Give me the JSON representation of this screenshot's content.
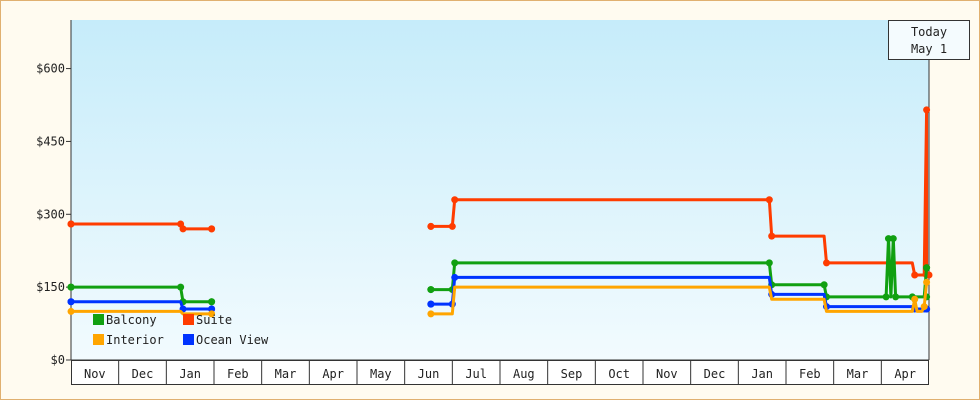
{
  "chart_data": {
    "type": "line",
    "y_axis": {
      "ticks": [
        "$0",
        "$150",
        "$300",
        "$450",
        "$600"
      ],
      "tick_values": [
        0,
        150,
        300,
        450,
        600
      ],
      "ylim": [
        0,
        700
      ]
    },
    "x_axis": {
      "months": [
        "Nov",
        "Dec",
        "Jan",
        "Feb",
        "Mar",
        "Apr",
        "May",
        "Jun",
        "Jul",
        "Aug",
        "Sep",
        "Oct",
        "Nov",
        "Dec",
        "Jan",
        "Feb",
        "Mar",
        "Apr"
      ],
      "range": [
        0,
        18
      ]
    },
    "today": {
      "line1": "Today",
      "line2": "May 1",
      "x": 18.0
    },
    "legend": [
      {
        "name": "Balcony",
        "color": "#11a011"
      },
      {
        "name": "Suite",
        "color": "#ff3c00"
      },
      {
        "name": "Interior",
        "color": "#ffa500"
      },
      {
        "name": "Ocean View",
        "color": "#0033ff"
      }
    ],
    "series": [
      {
        "name": "Suite",
        "color": "#ff3c00",
        "points": [
          [
            [
              0.0,
              280
            ],
            [
              2.3,
              280
            ],
            [
              2.3,
              280
            ],
            [
              2.35,
              270
            ],
            [
              2.95,
              270
            ]
          ],
          [
            [
              7.55,
              275
            ],
            [
              8.0,
              275
            ],
            [
              8.0,
              275
            ],
            [
              8.05,
              330
            ],
            [
              14.65,
              330
            ],
            [
              14.65,
              330
            ],
            [
              14.7,
              255
            ],
            [
              15.8,
              255
            ],
            [
              15.8,
              255
            ],
            [
              15.85,
              200
            ],
            [
              17.65,
              200
            ],
            [
              17.65,
              200
            ],
            [
              17.7,
              175
            ],
            [
              17.85,
              175
            ],
            [
              17.85,
              175
            ],
            [
              17.9,
              175
            ],
            [
              17.95,
              515
            ],
            [
              17.95,
              175
            ],
            [
              18.0,
              175
            ]
          ]
        ]
      },
      {
        "name": "Balcony",
        "color": "#11a011",
        "points": [
          [
            [
              0.0,
              150
            ],
            [
              2.3,
              150
            ],
            [
              2.3,
              150
            ],
            [
              2.35,
              120
            ],
            [
              2.95,
              120
            ]
          ],
          [
            [
              7.55,
              145
            ],
            [
              8.0,
              145
            ],
            [
              8.0,
              145
            ],
            [
              8.05,
              200
            ],
            [
              14.65,
              200
            ],
            [
              14.65,
              200
            ],
            [
              14.7,
              155
            ],
            [
              15.8,
              155
            ],
            [
              15.8,
              155
            ],
            [
              15.85,
              130
            ],
            [
              17.1,
              130
            ],
            [
              17.15,
              250
            ],
            [
              17.2,
              130
            ],
            [
              17.25,
              250
            ],
            [
              17.3,
              130
            ],
            [
              17.65,
              130
            ],
            [
              17.7,
              130
            ],
            [
              17.9,
              130
            ],
            [
              17.95,
              190
            ]
          ]
        ]
      },
      {
        "name": "Ocean View",
        "color": "#0033ff",
        "points": [
          [
            [
              0.0,
              120
            ],
            [
              2.3,
              120
            ],
            [
              2.3,
              120
            ],
            [
              2.35,
              105
            ],
            [
              2.95,
              105
            ]
          ],
          [
            [
              7.55,
              115
            ],
            [
              8.0,
              115
            ],
            [
              8.0,
              115
            ],
            [
              8.05,
              170
            ],
            [
              14.65,
              170
            ],
            [
              14.65,
              170
            ],
            [
              14.7,
              135
            ],
            [
              15.8,
              135
            ],
            [
              15.8,
              135
            ],
            [
              15.85,
              110
            ],
            [
              17.65,
              110
            ],
            [
              17.65,
              110
            ],
            [
              17.7,
              105
            ],
            [
              17.9,
              105
            ],
            [
              17.95,
              105
            ]
          ]
        ]
      },
      {
        "name": "Interior",
        "color": "#ffa500",
        "points": [
          [
            [
              0.0,
              100
            ],
            [
              2.3,
              100
            ],
            [
              2.3,
              100
            ],
            [
              2.35,
              95
            ],
            [
              2.95,
              95
            ]
          ],
          [
            [
              7.55,
              95
            ],
            [
              8.0,
              95
            ],
            [
              8.0,
              95
            ],
            [
              8.05,
              150
            ],
            [
              14.65,
              150
            ],
            [
              14.65,
              150
            ],
            [
              14.7,
              125
            ],
            [
              15.8,
              125
            ],
            [
              15.8,
              125
            ],
            [
              15.85,
              100
            ],
            [
              17.65,
              100
            ],
            [
              17.7,
              125
            ],
            [
              17.75,
              100
            ],
            [
              17.85,
              100
            ],
            [
              17.9,
              110
            ],
            [
              17.95,
              160
            ]
          ]
        ]
      }
    ],
    "markers": {
      "Suite": [
        [
          0.0,
          280
        ],
        [
          2.3,
          280
        ],
        [
          2.35,
          270
        ],
        [
          2.95,
          270
        ],
        [
          7.55,
          275
        ],
        [
          8.0,
          275
        ],
        [
          8.05,
          330
        ],
        [
          14.65,
          330
        ],
        [
          14.7,
          255
        ],
        [
          15.85,
          200
        ],
        [
          17.7,
          175
        ],
        [
          17.95,
          515
        ],
        [
          17.95,
          175
        ]
      ],
      "Balcony": [
        [
          0.0,
          150
        ],
        [
          2.3,
          150
        ],
        [
          2.35,
          120
        ],
        [
          2.95,
          120
        ],
        [
          7.55,
          145
        ],
        [
          8.0,
          145
        ],
        [
          8.05,
          200
        ],
        [
          14.65,
          200
        ],
        [
          14.7,
          155
        ],
        [
          15.8,
          155
        ],
        [
          15.85,
          130
        ],
        [
          17.15,
          250
        ],
        [
          17.25,
          250
        ],
        [
          17.1,
          130
        ],
        [
          17.3,
          130
        ],
        [
          17.65,
          130
        ],
        [
          17.95,
          190
        ],
        [
          17.95,
          130
        ]
      ],
      "Ocean View": [
        [
          0.0,
          120
        ],
        [
          2.35,
          105
        ],
        [
          2.95,
          105
        ],
        [
          7.55,
          115
        ],
        [
          8.0,
          115
        ],
        [
          8.05,
          170
        ],
        [
          14.7,
          135
        ],
        [
          15.85,
          110
        ],
        [
          17.7,
          105
        ],
        [
          17.9,
          105
        ],
        [
          17.95,
          105
        ]
      ],
      "Interior": [
        [
          17.7,
          125
        ],
        [
          17.9,
          110
        ]
      ]
    }
  }
}
